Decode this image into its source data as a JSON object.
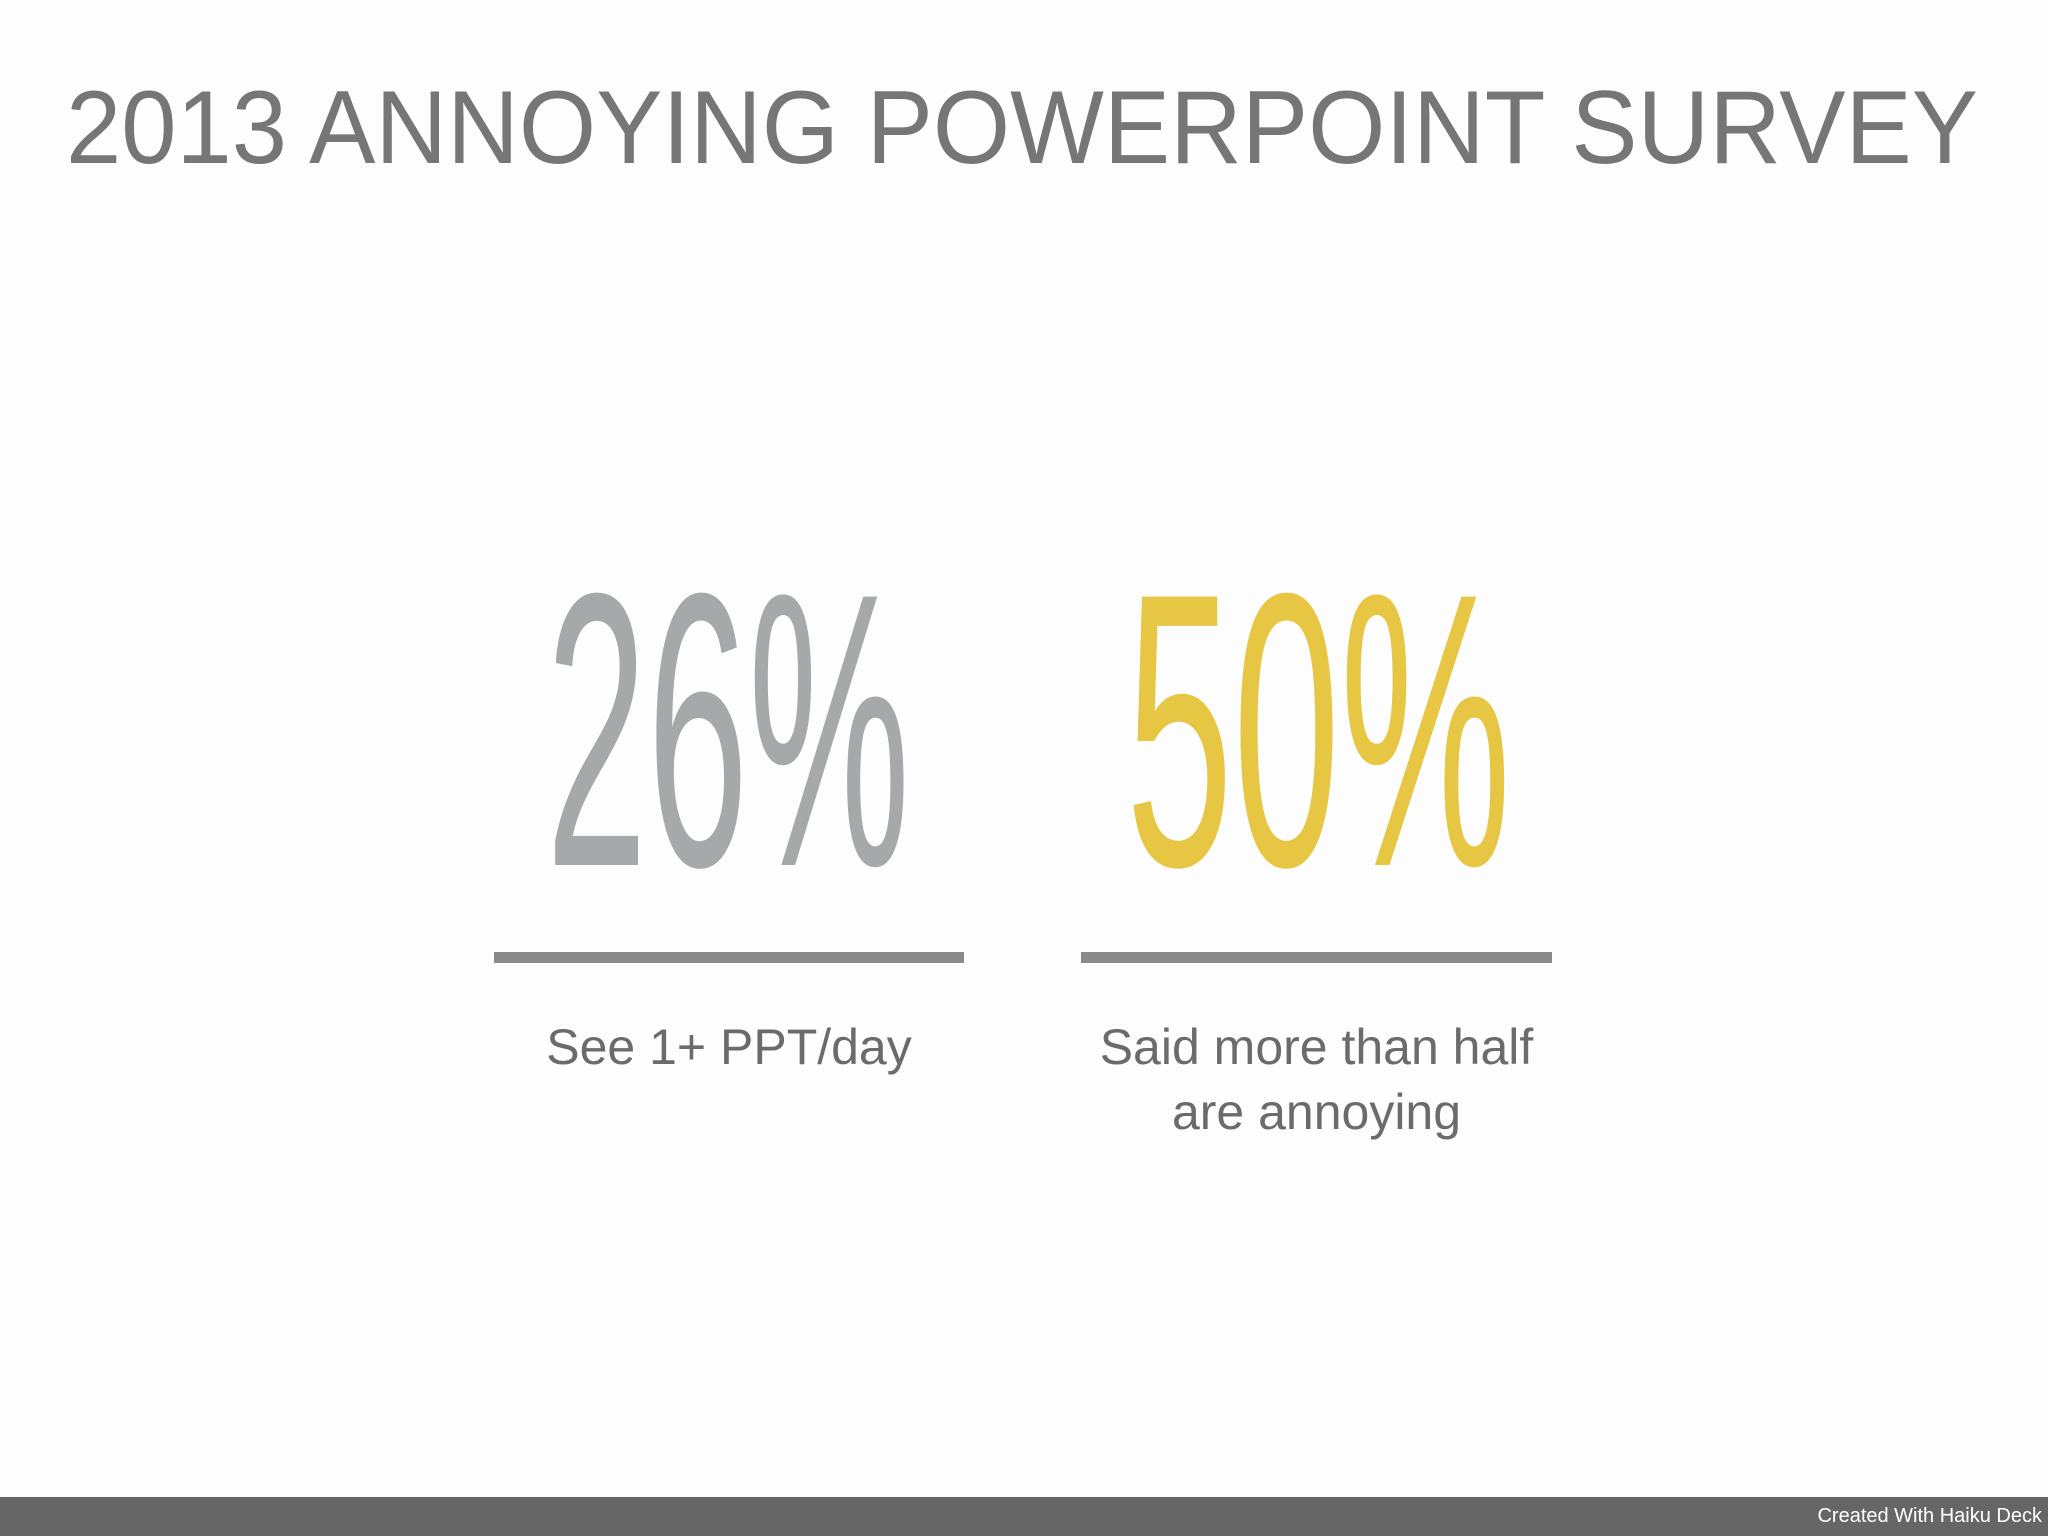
{
  "title": "2013 ANNOYING POWERPOINT SURVEY",
  "stats": [
    {
      "value": "26%",
      "color": "#a6a8aa",
      "caption_lines": [
        "See 1+ PPT/day"
      ]
    },
    {
      "value": "50%",
      "color": "#e6c643",
      "caption_lines": [
        "Said more than half",
        "are annoying"
      ]
    }
  ],
  "footer": "Created With Haiku Deck"
}
